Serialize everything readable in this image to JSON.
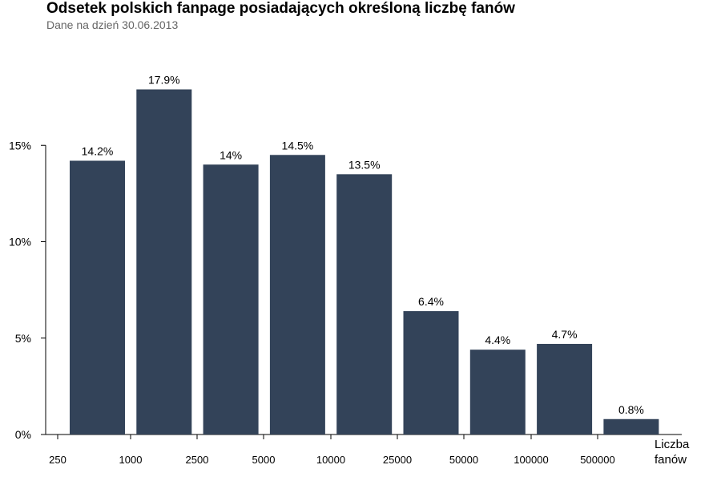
{
  "chart_data": {
    "type": "bar",
    "title": "Odsetek polskich fanpage posiadających określoną liczbę fanów",
    "subtitle": "Dane na dzień 30.06.2013",
    "xlabel_lines": [
      "Liczba",
      "fanów"
    ],
    "ylabel": "",
    "x_tick_labels": [
      "250",
      "1000",
      "2500",
      "5000",
      "10000",
      "25000",
      "50000",
      "100000",
      "500000"
    ],
    "y_ticks": [
      0,
      5,
      10,
      15
    ],
    "y_tick_labels": [
      "0%",
      "5%",
      "10%",
      "15%"
    ],
    "ylim": [
      0,
      18
    ],
    "values": [
      14.2,
      17.9,
      14,
      14.5,
      13.5,
      6.4,
      4.4,
      4.7,
      0.8
    ],
    "value_labels": [
      "14.2%",
      "17.9%",
      "14%",
      "14.5%",
      "13.5%",
      "6.4%",
      "4.4%",
      "4.7%",
      "0.8%"
    ],
    "bar_color": "#334359",
    "grid": false
  }
}
